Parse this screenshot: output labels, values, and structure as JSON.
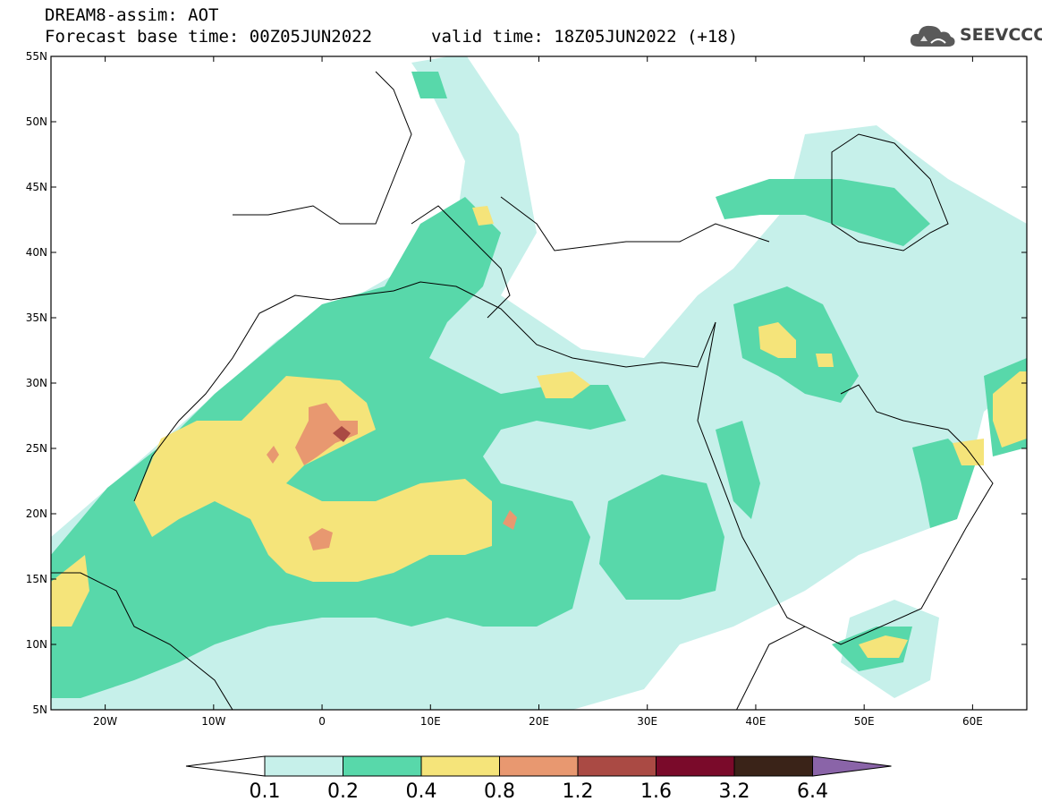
{
  "header": {
    "title_line1": "DREAM8-assim: AOT",
    "title_line2": "Forecast base time: 00Z05JUN2022",
    "valid_time": "valid time: 18Z05JUN2022 (+18)",
    "logo_text": "SEEVCCC"
  },
  "map": {
    "lat_range": [
      5,
      55
    ],
    "lon_range": [
      -25,
      65
    ],
    "lat_ticks": [
      "55N",
      "50N",
      "45N",
      "40N",
      "35N",
      "30N",
      "25N",
      "20N",
      "15N",
      "10N",
      "5N"
    ],
    "lon_ticks": [
      "20W",
      "10W",
      "0",
      "10E",
      "20E",
      "30E",
      "40E",
      "50E",
      "60E"
    ]
  },
  "colorbar": {
    "labels": [
      "0.1",
      "0.2",
      "0.4",
      "0.8",
      "1.2",
      "1.6",
      "3.2",
      "6.4"
    ],
    "colors": [
      "#ffffff",
      "#c6f0ea",
      "#58d8aa",
      "#f5e47a",
      "#e89870",
      "#aa4a44",
      "#7a0a2a",
      "#3a2318",
      "#8a64a8"
    ]
  }
}
